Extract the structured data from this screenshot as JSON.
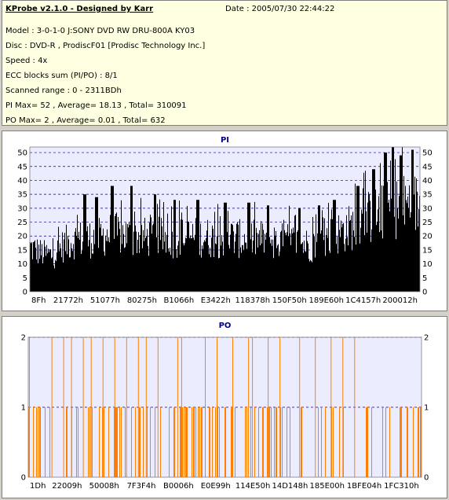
{
  "info": {
    "title": "KProbe v2.1.0 - Designed by Karr",
    "date": "Date : 2005/07/30 22:44:22",
    "lines": [
      "Model : 3-0-1-0 J:SONY    DVD RW DRU-800A  KY03",
      "Disc : DVD-R , ProdiscF01 [Prodisc Technology Inc.]",
      "Speed : 4x",
      "ECC blocks sum (PI/PO) : 8/1",
      "Scanned range : 0 - 2311BDh",
      "PI Max= 52 , Average= 18.13 , Total= 310091",
      "PO Max= 2 , Average= 0.01 , Total= 632"
    ]
  },
  "colors": {
    "pi_bars": "#000000",
    "po_bars": "#ff8000",
    "plot_bg": "#ececff",
    "grid": "#000080"
  },
  "chart_data": [
    {
      "type": "bar",
      "title": "PI",
      "ylim": [
        0,
        52
      ],
      "yticks": [
        0,
        5,
        10,
        15,
        20,
        25,
        30,
        35,
        40,
        45,
        50
      ],
      "xticks": [
        "8Fh",
        "21772h",
        "51077h",
        "80275h",
        "B1066h",
        "E3422h",
        "118378h",
        "150F50h",
        "189E60h",
        "1C4157h",
        "200012h"
      ],
      "grid": "dashed horizontal",
      "profile": [
        [
          0,
          22
        ],
        [
          3,
          19
        ],
        [
          6,
          18
        ],
        [
          9,
          24
        ],
        [
          12,
          26
        ],
        [
          15,
          26
        ],
        [
          18,
          27
        ],
        [
          21,
          29
        ],
        [
          24,
          28
        ],
        [
          27,
          27
        ],
        [
          30,
          27
        ],
        [
          33,
          27
        ],
        [
          36,
          26
        ],
        [
          39,
          27
        ],
        [
          42,
          27
        ],
        [
          45,
          27
        ],
        [
          48,
          26
        ],
        [
          51,
          27
        ],
        [
          54,
          26
        ],
        [
          57,
          26
        ],
        [
          60,
          26
        ],
        [
          63,
          25
        ],
        [
          66,
          25
        ],
        [
          69,
          24
        ],
        [
          72,
          23
        ],
        [
          75,
          26
        ],
        [
          78,
          28
        ],
        [
          81,
          31
        ],
        [
          84,
          33
        ],
        [
          87,
          37
        ],
        [
          90,
          39
        ],
        [
          93,
          41
        ],
        [
          96,
          43
        ],
        [
          98,
          44
        ],
        [
          100,
          42
        ]
      ],
      "peaks": [
        [
          14,
          35
        ],
        [
          17,
          34
        ],
        [
          21,
          38
        ],
        [
          26,
          38
        ],
        [
          32,
          35
        ],
        [
          37,
          33
        ],
        [
          43,
          33
        ],
        [
          50,
          32
        ],
        [
          56,
          32
        ],
        [
          61,
          31
        ],
        [
          69,
          30
        ],
        [
          74,
          31
        ],
        [
          78,
          33
        ],
        [
          84,
          38
        ],
        [
          88,
          44
        ],
        [
          91,
          50
        ],
        [
          93,
          52
        ],
        [
          95,
          49
        ],
        [
          98,
          51
        ]
      ],
      "average": 18.13,
      "max": 52
    },
    {
      "type": "bar",
      "title": "PO",
      "ylim": [
        0,
        2
      ],
      "yticks": [
        0,
        1,
        2
      ],
      "xticks": [
        "1Dh",
        "22009h",
        "50008h",
        "7F3F4h",
        "B0006h",
        "E0E99h",
        "114E50h",
        "14D148h",
        "185E00h",
        "1BFE04h",
        "1FC310h"
      ],
      "grid": "dashed horizontal",
      "value_2_at": [
        0.3,
        6,
        9,
        11,
        14,
        16,
        19,
        22,
        25,
        28,
        30,
        33,
        38,
        39,
        45,
        48,
        52,
        56,
        57,
        61,
        64,
        69,
        73,
        77,
        80,
        83
      ],
      "average": 0.01,
      "max": 2
    }
  ]
}
